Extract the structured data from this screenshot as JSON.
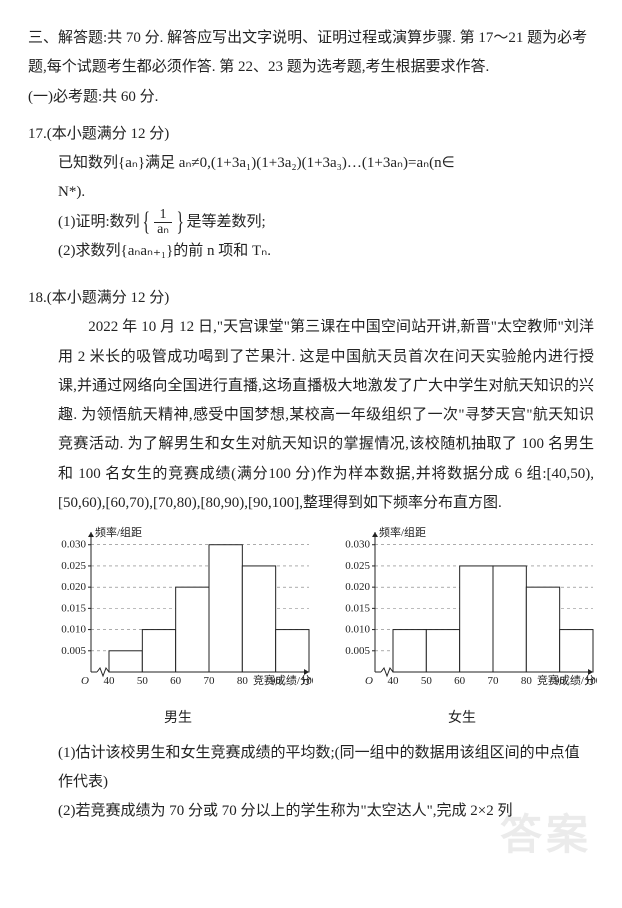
{
  "section": {
    "heading": "三、解答题:共 70 分. 解答应写出文字说明、证明过程或演算步骤. 第 17～21 题为必考题,每个试题考生都必须作答. 第 22、23 题为选考题,考生根据要求作答.",
    "sub_heading": "(一)必考题:共 60 分."
  },
  "q17": {
    "title": "17.(本小题满分 12 分)",
    "stem_a": "已知数列{aₙ}满足 aₙ≠0,(1+3a₁)(1+3a₂)(1+3a₃)…(1+3aₙ)=aₙ(n∈",
    "stem_b": "N*).",
    "part1_prefix": "(1)证明:数列",
    "frac_num": "1",
    "frac_den": "aₙ",
    "part1_suffix": "是等差数列;",
    "part2": "(2)求数列{aₙaₙ₊₁}的前 n 项和 Tₙ."
  },
  "q18": {
    "title": "18.(本小题满分 12 分)",
    "para": "　　2022 年 10 月 12 日,\"天宫课堂\"第三课在中国空间站开讲,新晋\"太空教师\"刘洋用 2 米长的吸管成功喝到了芒果汁. 这是中国航天员首次在问天实验舱内进行授课,并通过网络向全国进行直播,这场直播极大地激发了广大中学生对航天知识的兴趣. 为领悟航天精神,感受中国梦想,某校高一年级组织了一次\"寻梦天宫\"航天知识竞赛活动. 为了解男生和女生对航天知识的掌握情况,该校随机抽取了 100 名男生和 100 名女生的竞赛成绩(满分100 分)作为样本数据,并将数据分成 6 组:[40,50),[50,60),[60,70),[70,80),[80,90),[90,100],整理得到如下频率分布直方图.",
    "part1": "(1)估计该校男生和女生竞赛成绩的平均数;(同一组中的数据用该组区间的中点值作代表)",
    "part2": "(2)若竞赛成绩为 70 分或 70 分以上的学生称为\"太空达人\",完成 2×2 列"
  },
  "charts": {
    "y_label": "频率/组距",
    "x_label": "竞赛成绩/分",
    "x_ticks": [
      40,
      50,
      60,
      70,
      80,
      90,
      100
    ],
    "y_ticks": [
      0.005,
      0.01,
      0.015,
      0.02,
      0.025,
      0.03
    ],
    "y_max": 0.033,
    "bar_fill": "#ffffff",
    "bar_stroke": "#222222",
    "axis_color": "#222222",
    "grid_dash": "3,3",
    "male": {
      "title": "男生",
      "heights": [
        0.005,
        0.01,
        0.02,
        0.03,
        0.025,
        0.01
      ]
    },
    "female": {
      "title": "女生",
      "heights": [
        0.01,
        0.01,
        0.025,
        0.025,
        0.02,
        0.01
      ]
    },
    "label_fontsize": 11
  },
  "watermark": "答案"
}
